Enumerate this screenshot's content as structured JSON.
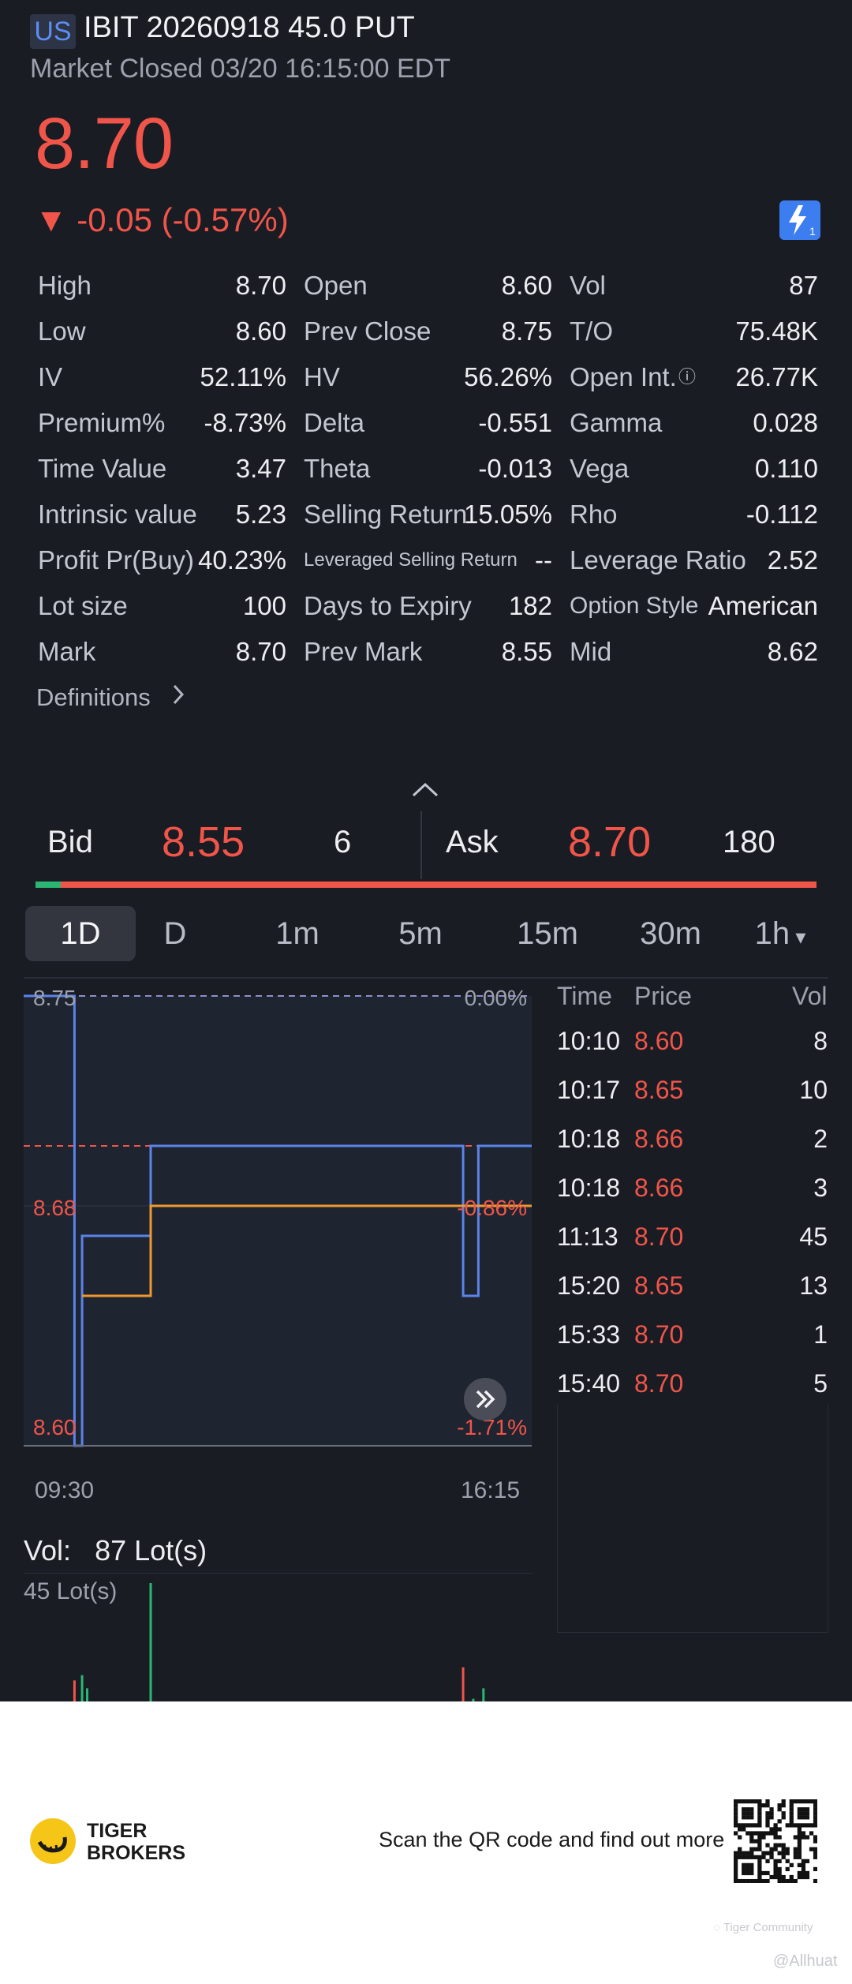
{
  "header": {
    "market_badge": "US",
    "title": "IBIT 20260918 45.0 PUT",
    "status": "Market Closed 03/20 16:15:00 EDT",
    "last_price": "8.70",
    "change_text": "▼ -0.05 (-0.57%)",
    "flash_icon": "lightning-icon"
  },
  "stats": [
    [
      {
        "label": "High",
        "value": "8.70",
        "red": true
      },
      {
        "label": "Open",
        "value": "8.60",
        "red": true
      },
      {
        "label": "Vol",
        "value": "87"
      }
    ],
    [
      {
        "label": "Low",
        "value": "8.60",
        "red": true
      },
      {
        "label": "Prev Close",
        "value": "8.75"
      },
      {
        "label": "T/O",
        "value": "75.48K"
      }
    ],
    [
      {
        "label": "IV",
        "value": "52.11%"
      },
      {
        "label": "HV",
        "value": "56.26%"
      },
      {
        "label": "Open Int.",
        "value": "26.77K",
        "info": true
      }
    ],
    [
      {
        "label": "Premium%",
        "value": "-8.73%"
      },
      {
        "label": "Delta",
        "value": "-0.551"
      },
      {
        "label": "Gamma",
        "value": "0.028"
      }
    ],
    [
      {
        "label": "Time Value",
        "value": "3.47"
      },
      {
        "label": "Theta",
        "value": "-0.013"
      },
      {
        "label": "Vega",
        "value": "0.110"
      }
    ],
    [
      {
        "label": "Intrinsic value",
        "value": "5.23"
      },
      {
        "label": "Selling Return",
        "value": "15.05%"
      },
      {
        "label": "Rho",
        "value": "-0.112"
      }
    ],
    [
      {
        "label": "Profit Pr(Buy)",
        "value": "40.23%"
      },
      {
        "label": "Leveraged Selling Return",
        "value": "--",
        "small": true
      },
      {
        "label": "Leverage Ratio",
        "value": "2.52"
      }
    ],
    [
      {
        "label": "Lot size",
        "value": "100"
      },
      {
        "label": "Days to Expiry",
        "value": "182"
      },
      {
        "label": "Option Style",
        "value": "American",
        "small": true
      }
    ],
    [
      {
        "label": "Mark",
        "value": "8.70"
      },
      {
        "label": "Prev Mark",
        "value": "8.55"
      },
      {
        "label": "Mid",
        "value": "8.62"
      }
    ]
  ],
  "definitions_label": "Definitions",
  "quote": {
    "bid_label": "Bid",
    "bid_price": "8.55",
    "bid_size": "6",
    "ask_label": "Ask",
    "ask_price": "8.70",
    "ask_size": "180",
    "bid_fraction": 0.032
  },
  "timeframes": [
    {
      "label": "1D",
      "active": true
    },
    {
      "label": "D"
    },
    {
      "label": "1m"
    },
    {
      "label": "5m"
    },
    {
      "label": "15m"
    },
    {
      "label": "30m"
    },
    {
      "label": "1h",
      "dropdown": true
    }
  ],
  "chart_data": {
    "type": "line",
    "y_ticks_left": [
      "8.75",
      "8.68",
      "8.60"
    ],
    "y_ticks_right": [
      "0.00%",
      "-0.86%",
      "-1.71%"
    ],
    "x_ticks": [
      "09:30",
      "16:15"
    ],
    "ylim": [
      8.6,
      8.75
    ],
    "prev_close_line": 8.75,
    "last_line": 8.7,
    "series": [
      {
        "color": "#5b84ea",
        "x": [
          0,
          0.1,
          0.1,
          0.115,
          0.115,
          0.25,
          0.25,
          0.865,
          0.865,
          0.895,
          0.895,
          1.0
        ],
        "y": [
          8.75,
          8.75,
          8.6,
          8.6,
          8.67,
          8.67,
          8.7,
          8.7,
          8.65,
          8.65,
          8.7,
          8.7
        ]
      },
      {
        "color": "#f1982e",
        "x": [
          0.115,
          0.25,
          0.25,
          0.865,
          0.865,
          1.0
        ],
        "y": [
          8.65,
          8.65,
          8.68,
          8.68,
          8.68,
          8.68
        ]
      }
    ],
    "volume_label": "Vol:",
    "volume_value": "87 Lot(s)",
    "volume_max_label": "45 Lot(s)",
    "volume_bars": [
      {
        "x": 0.1,
        "v": 8,
        "color": "#f0554a"
      },
      {
        "x": 0.115,
        "v": 10,
        "color": "#2bb673"
      },
      {
        "x": 0.125,
        "v": 5,
        "color": "#2bb673"
      },
      {
        "x": 0.25,
        "v": 45,
        "color": "#2bb673"
      },
      {
        "x": 0.865,
        "v": 13,
        "color": "#f0554a"
      },
      {
        "x": 0.885,
        "v": 1,
        "color": "#2bb673"
      },
      {
        "x": 0.905,
        "v": 5,
        "color": "#2bb673"
      }
    ]
  },
  "ticks": {
    "headers": {
      "time": "Time",
      "price": "Price",
      "vol": "Vol"
    },
    "rows": [
      {
        "time": "10:10",
        "price": "8.60",
        "vol": "8"
      },
      {
        "time": "10:17",
        "price": "8.65",
        "vol": "10"
      },
      {
        "time": "10:18",
        "price": "8.66",
        "vol": "2"
      },
      {
        "time": "10:18",
        "price": "8.66",
        "vol": "3"
      },
      {
        "time": "11:13",
        "price": "8.70",
        "vol": "45"
      },
      {
        "time": "15:20",
        "price": "8.65",
        "vol": "13"
      },
      {
        "time": "15:33",
        "price": "8.70",
        "vol": "1"
      },
      {
        "time": "15:40",
        "price": "8.70",
        "vol": "5"
      }
    ]
  },
  "footer": {
    "brand_line1": "TIGER",
    "brand_line2": "BROKERS",
    "cta": "Scan the QR code and find out more",
    "watermark1": "Tiger Community",
    "watermark2": "@Allhuat"
  }
}
